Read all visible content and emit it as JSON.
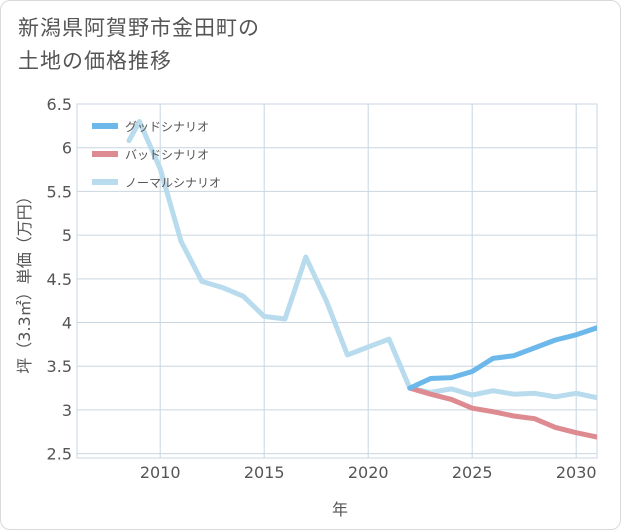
{
  "title_line1": "新潟県阿賀野市金田町の",
  "title_line2": "土地の価格推移",
  "chart_data": {
    "type": "line",
    "title": "新潟県阿賀野市金田町の土地の価格推移",
    "xlabel": "年",
    "ylabel": "坪（3.3㎡）単価（万円）",
    "xlim": [
      2006,
      2031
    ],
    "ylim": [
      2.45,
      6.5
    ],
    "xticks": [
      2010,
      2015,
      2020,
      2025,
      2030
    ],
    "xtick_labels": [
      "2010",
      "2015",
      "2020",
      "2025",
      "2030"
    ],
    "yticks": [
      2.5,
      3,
      3.5,
      4,
      4.5,
      5,
      5.5,
      6,
      6.5
    ],
    "ytick_labels": [
      "2.5",
      "3",
      "3.5",
      "4",
      "4.5",
      "5",
      "5.5",
      "6",
      "6.5"
    ],
    "grid": true,
    "legend_position": "top-left",
    "series": [
      {
        "name": "グッドシナリオ",
        "color": "#6cb8ea",
        "x": [
          2022,
          2023,
          2024,
          2025,
          2026,
          2027,
          2028,
          2029,
          2030,
          2031
        ],
        "y": [
          3.25,
          3.36,
          3.37,
          3.44,
          3.59,
          3.62,
          3.71,
          3.8,
          3.86,
          3.94
        ]
      },
      {
        "name": "バッドシナリオ",
        "color": "#dd8a90",
        "x": [
          2022,
          2023,
          2024,
          2025,
          2026,
          2027,
          2028,
          2029,
          2030,
          2031
        ],
        "y": [
          3.25,
          3.18,
          3.12,
          3.02,
          2.98,
          2.93,
          2.9,
          2.8,
          2.74,
          2.69
        ]
      },
      {
        "name": "ノーマルシナリオ",
        "color": "#b8dced",
        "x": [
          2008.5,
          2009,
          2010,
          2011,
          2012,
          2013,
          2014,
          2015,
          2016,
          2017,
          2018,
          2019,
          2020,
          2021,
          2022,
          2023,
          2024,
          2025,
          2026,
          2027,
          2028,
          2029,
          2030,
          2031
        ],
        "y": [
          6.08,
          6.3,
          5.76,
          4.93,
          4.47,
          4.4,
          4.3,
          4.07,
          4.04,
          4.75,
          4.24,
          3.63,
          3.72,
          3.81,
          3.25,
          3.2,
          3.24,
          3.17,
          3.22,
          3.18,
          3.19,
          3.15,
          3.19,
          3.14
        ]
      }
    ]
  }
}
